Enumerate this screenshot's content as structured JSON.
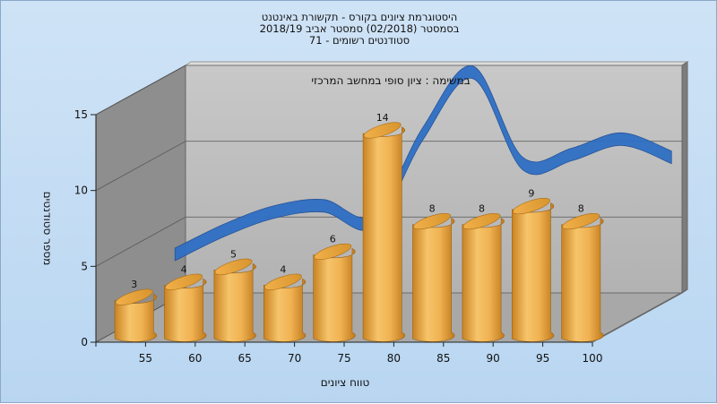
{
  "title": {
    "line1": "היסטוגרמת ציונים בקורס - תקשורת באינטנט",
    "line2": "בסמסטר  (02/2018)  סמסטר אביב 2018/19",
    "line3": "סטודנטים רשומים - 71"
  },
  "chart_data": {
    "type": "bar",
    "subtitle": "במשימה : ציון סופי במחשב המרכזי",
    "xlabel": "טווח ציונים",
    "ylabel": "מספר סטודנטים",
    "categories": [
      "55",
      "60",
      "65",
      "70",
      "75",
      "80",
      "85",
      "90",
      "95",
      "100"
    ],
    "values": [
      3,
      4,
      5,
      4,
      6,
      14,
      8,
      8,
      9,
      8
    ],
    "bar_data_labels": [
      "3",
      "4",
      "5",
      "4",
      "6",
      "14",
      "8",
      "8",
      "9",
      "8"
    ],
    "curve_values": [
      4,
      5.6,
      6.8,
      7.2,
      6.2,
      12,
      16,
      10,
      10.6,
      11.6,
      10.4
    ],
    "yticks": [
      0,
      5,
      10,
      15
    ],
    "ylim": [
      0,
      15
    ],
    "grid": true,
    "colors": {
      "bar": "#e8a53a",
      "curve": "#2f6fc4",
      "back_wall": "#b8b8b8",
      "side_wall": "#8e8e8e",
      "floor": "#a8a8a8"
    }
  }
}
